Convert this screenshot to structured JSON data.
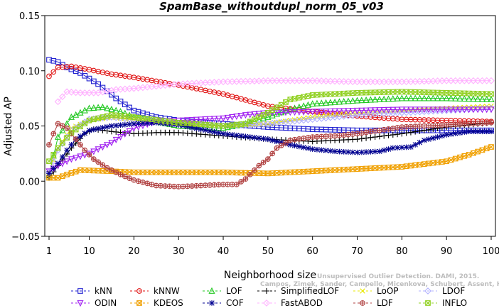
{
  "chart_data": {
    "type": "line",
    "title": "SpamBase_withoutdupl_norm_05_v03",
    "xlabel": "Neighborhood size",
    "ylabel": "Adjusted AP",
    "xlim": [
      1,
      100
    ],
    "ylim": [
      -0.05,
      0.15
    ],
    "x_ticks": [
      1,
      10,
      20,
      30,
      40,
      50,
      60,
      70,
      80,
      90,
      100
    ],
    "y_ticks": [
      -0.05,
      0.0,
      0.05,
      0.1,
      0.15
    ],
    "y_tick_labels": [
      "−0.05",
      "0.00",
      "0.05",
      "0.10",
      "0.15"
    ],
    "grid": false,
    "legend_position": "bottom",
    "credit": {
      "line1": "Unsupervised Outlier Detection. DAMI, 2015.",
      "line2": "Campos, Zimek, Sander, Campello, Micenkova, Schubert, Assent, Houle"
    },
    "series": [
      {
        "name": "kNN",
        "color": "#2020d0",
        "marker": "square",
        "points": [
          [
            1,
            0.11
          ],
          [
            3,
            0.108
          ],
          [
            5,
            0.103
          ],
          [
            8,
            0.098
          ],
          [
            12,
            0.088
          ],
          [
            16,
            0.075
          ],
          [
            20,
            0.064
          ],
          [
            25,
            0.058
          ],
          [
            30,
            0.055
          ],
          [
            40,
            0.052
          ],
          [
            50,
            0.049
          ],
          [
            60,
            0.047
          ],
          [
            70,
            0.046
          ],
          [
            80,
            0.046
          ],
          [
            90,
            0.046
          ],
          [
            100,
            0.046
          ]
        ]
      },
      {
        "name": "kNNW",
        "color": "#e01010",
        "marker": "circle",
        "points": [
          [
            1,
            0.095
          ],
          [
            3,
            0.103
          ],
          [
            6,
            0.104
          ],
          [
            10,
            0.101
          ],
          [
            15,
            0.097
          ],
          [
            20,
            0.094
          ],
          [
            30,
            0.087
          ],
          [
            40,
            0.079
          ],
          [
            50,
            0.068
          ],
          [
            60,
            0.063
          ],
          [
            70,
            0.059
          ],
          [
            80,
            0.056
          ],
          [
            90,
            0.055
          ],
          [
            100,
            0.054
          ]
        ]
      },
      {
        "name": "LOF",
        "color": "#22c822",
        "marker": "triangle-up",
        "points": [
          [
            1,
            0.006
          ],
          [
            3,
            0.04
          ],
          [
            6,
            0.058
          ],
          [
            10,
            0.066
          ],
          [
            13,
            0.067
          ],
          [
            17,
            0.063
          ],
          [
            20,
            0.058
          ],
          [
            25,
            0.054
          ],
          [
            30,
            0.05
          ],
          [
            40,
            0.048
          ],
          [
            45,
            0.052
          ],
          [
            50,
            0.058
          ],
          [
            55,
            0.065
          ],
          [
            60,
            0.07
          ],
          [
            70,
            0.073
          ],
          [
            80,
            0.075
          ],
          [
            90,
            0.075
          ],
          [
            100,
            0.074
          ]
        ]
      },
      {
        "name": "SimplifiedLOF",
        "color": "#000000",
        "marker": "plus",
        "points": [
          [
            1,
            0.003
          ],
          [
            3,
            0.014
          ],
          [
            6,
            0.03
          ],
          [
            9,
            0.043
          ],
          [
            11,
            0.047
          ],
          [
            15,
            0.045
          ],
          [
            20,
            0.043
          ],
          [
            25,
            0.044
          ],
          [
            30,
            0.044
          ],
          [
            40,
            0.041
          ],
          [
            50,
            0.038
          ],
          [
            60,
            0.036
          ],
          [
            70,
            0.038
          ],
          [
            80,
            0.043
          ],
          [
            90,
            0.049
          ],
          [
            100,
            0.053
          ]
        ]
      },
      {
        "name": "LoOP",
        "color": "#e8e800",
        "marker": "x",
        "points": [
          [
            1,
            0.008
          ],
          [
            3,
            0.03
          ],
          [
            6,
            0.048
          ],
          [
            10,
            0.055
          ],
          [
            15,
            0.058
          ],
          [
            20,
            0.056
          ],
          [
            30,
            0.052
          ],
          [
            40,
            0.05
          ],
          [
            50,
            0.052
          ],
          [
            60,
            0.058
          ],
          [
            70,
            0.062
          ],
          [
            80,
            0.064
          ],
          [
            90,
            0.066
          ],
          [
            100,
            0.068
          ]
        ]
      },
      {
        "name": "LDOF",
        "color": "#b0b0ff",
        "marker": "diamond",
        "points": [
          [
            1,
            0.008
          ],
          [
            3,
            0.028
          ],
          [
            6,
            0.046
          ],
          [
            10,
            0.056
          ],
          [
            15,
            0.058
          ],
          [
            20,
            0.056
          ],
          [
            30,
            0.052
          ],
          [
            40,
            0.05
          ],
          [
            50,
            0.052
          ],
          [
            60,
            0.056
          ],
          [
            70,
            0.06
          ],
          [
            80,
            0.062
          ],
          [
            90,
            0.064
          ],
          [
            100,
            0.066
          ]
        ]
      },
      {
        "name": "ODIN",
        "color": "#a020f0",
        "marker": "triangle-down",
        "points": [
          [
            1,
            0.009
          ],
          [
            3,
            0.014
          ],
          [
            6,
            0.02
          ],
          [
            10,
            0.025
          ],
          [
            15,
            0.035
          ],
          [
            20,
            0.048
          ],
          [
            25,
            0.054
          ],
          [
            30,
            0.055
          ],
          [
            35,
            0.056
          ],
          [
            40,
            0.057
          ],
          [
            45,
            0.06
          ],
          [
            50,
            0.062
          ],
          [
            60,
            0.063
          ],
          [
            70,
            0.064
          ],
          [
            80,
            0.065
          ],
          [
            90,
            0.065
          ],
          [
            100,
            0.065
          ]
        ]
      },
      {
        "name": "KDEOS",
        "color": "#f0a000",
        "marker": "square-x",
        "points": [
          [
            1,
            0.003
          ],
          [
            3,
            0.003
          ],
          [
            5,
            0.006
          ],
          [
            8,
            0.01
          ],
          [
            15,
            0.009
          ],
          [
            20,
            0.008
          ],
          [
            30,
            0.008
          ],
          [
            40,
            0.008
          ],
          [
            50,
            0.007
          ],
          [
            60,
            0.009
          ],
          [
            70,
            0.011
          ],
          [
            80,
            0.013
          ],
          [
            90,
            0.018
          ],
          [
            95,
            0.024
          ],
          [
            100,
            0.031
          ]
        ]
      },
      {
        "name": "COF",
        "color": "#000090",
        "marker": "star",
        "points": [
          [
            1,
            0.007
          ],
          [
            3,
            0.016
          ],
          [
            5,
            0.028
          ],
          [
            7,
            0.038
          ],
          [
            10,
            0.046
          ],
          [
            15,
            0.05
          ],
          [
            20,
            0.052
          ],
          [
            25,
            0.053
          ],
          [
            30,
            0.051
          ],
          [
            40,
            0.043
          ],
          [
            50,
            0.038
          ],
          [
            55,
            0.033
          ],
          [
            60,
            0.029
          ],
          [
            65,
            0.027
          ],
          [
            70,
            0.026
          ],
          [
            75,
            0.027
          ],
          [
            78,
            0.03
          ],
          [
            82,
            0.031
          ],
          [
            85,
            0.037
          ],
          [
            90,
            0.042
          ],
          [
            95,
            0.045
          ],
          [
            100,
            0.045
          ]
        ]
      },
      {
        "name": "FastABOD",
        "color": "#ffb0ff",
        "marker": "diamond",
        "points": [
          [
            3,
            0.072
          ],
          [
            5,
            0.081
          ],
          [
            8,
            0.08
          ],
          [
            12,
            0.08
          ],
          [
            16,
            0.083
          ],
          [
            20,
            0.084
          ],
          [
            30,
            0.088
          ],
          [
            40,
            0.09
          ],
          [
            50,
            0.091
          ],
          [
            60,
            0.091
          ],
          [
            70,
            0.09
          ],
          [
            80,
            0.09
          ],
          [
            90,
            0.091
          ],
          [
            100,
            0.091
          ]
        ]
      },
      {
        "name": "LDF",
        "color": "#b04040",
        "marker": "circle-plus",
        "points": [
          [
            1,
            0.033
          ],
          [
            2,
            0.043
          ],
          [
            3,
            0.052
          ],
          [
            5,
            0.048
          ],
          [
            7,
            0.038
          ],
          [
            9,
            0.028
          ],
          [
            11,
            0.02
          ],
          [
            14,
            0.012
          ],
          [
            17,
            0.006
          ],
          [
            20,
            0.001
          ],
          [
            25,
            -0.004
          ],
          [
            30,
            -0.005
          ],
          [
            35,
            -0.004
          ],
          [
            40,
            -0.003
          ],
          [
            43,
            -0.003
          ],
          [
            45,
            0.002
          ],
          [
            48,
            0.014
          ],
          [
            50,
            0.02
          ],
          [
            52,
            0.03
          ],
          [
            55,
            0.037
          ],
          [
            60,
            0.04
          ],
          [
            65,
            0.041
          ],
          [
            70,
            0.043
          ],
          [
            75,
            0.046
          ],
          [
            80,
            0.049
          ],
          [
            85,
            0.05
          ],
          [
            90,
            0.051
          ],
          [
            95,
            0.052
          ],
          [
            100,
            0.053
          ]
        ]
      },
      {
        "name": "INFLO",
        "color": "#90d020",
        "marker": "square-x",
        "points": [
          [
            1,
            0.018
          ],
          [
            3,
            0.03
          ],
          [
            6,
            0.044
          ],
          [
            10,
            0.055
          ],
          [
            15,
            0.06
          ],
          [
            20,
            0.058
          ],
          [
            30,
            0.053
          ],
          [
            40,
            0.05
          ],
          [
            45,
            0.052
          ],
          [
            50,
            0.062
          ],
          [
            55,
            0.074
          ],
          [
            60,
            0.078
          ],
          [
            70,
            0.08
          ],
          [
            80,
            0.081
          ],
          [
            90,
            0.08
          ],
          [
            100,
            0.079
          ]
        ]
      }
    ]
  }
}
